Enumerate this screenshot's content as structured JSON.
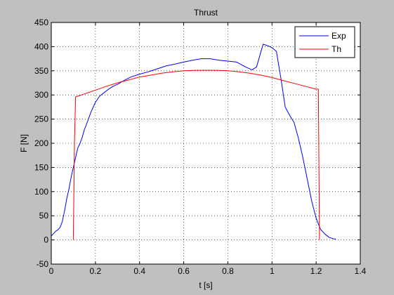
{
  "chart_data": {
    "type": "line",
    "title": "Thrust",
    "xlabel": "t [s]",
    "ylabel": "F [N]",
    "xlim": [
      0,
      1.4
    ],
    "ylim": [
      -50,
      450
    ],
    "xticks": [
      0,
      0.2,
      0.4,
      0.6,
      0.8,
      1,
      1.2,
      1.4
    ],
    "xtick_labels": [
      "0",
      "0.2",
      "0.4",
      "0.6",
      "0.8",
      "1",
      "1.2",
      "1.4"
    ],
    "yticks": [
      -50,
      0,
      50,
      100,
      150,
      200,
      250,
      300,
      350,
      400,
      450
    ],
    "ytick_labels": [
      "-50",
      "0",
      "50",
      "100",
      "150",
      "200",
      "250",
      "300",
      "350",
      "400",
      "450"
    ],
    "grid": true,
    "legend_position": "top-right",
    "colors": {
      "exp": "#0000ff",
      "th": "#ff0000",
      "background": "#c0c0c0",
      "axes": "#ffffff"
    },
    "series": [
      {
        "name": "Exp",
        "color": "#0000ff",
        "x": [
          0.0,
          0.01,
          0.02,
          0.03,
          0.04,
          0.05,
          0.06,
          0.07,
          0.08,
          0.09,
          0.1,
          0.11,
          0.12,
          0.13,
          0.14,
          0.15,
          0.16,
          0.17,
          0.18,
          0.2,
          0.22,
          0.24,
          0.26,
          0.28,
          0.3,
          0.33,
          0.36,
          0.4,
          0.44,
          0.48,
          0.52,
          0.56,
          0.6,
          0.64,
          0.68,
          0.72,
          0.76,
          0.8,
          0.84,
          0.88,
          0.91,
          0.93,
          0.95,
          0.96,
          0.98,
          1.0,
          1.02,
          1.04,
          1.06,
          1.08,
          1.1,
          1.12,
          1.14,
          1.16,
          1.18,
          1.2,
          1.22,
          1.24,
          1.26,
          1.28,
          1.29
        ],
        "y": [
          8,
          13,
          18,
          21,
          26,
          38,
          60,
          85,
          105,
          130,
          150,
          170,
          190,
          200,
          212,
          228,
          240,
          252,
          265,
          285,
          298,
          305,
          312,
          318,
          322,
          330,
          337,
          343,
          348,
          354,
          360,
          364,
          368,
          372,
          375,
          375,
          372,
          370,
          368,
          358,
          352,
          358,
          390,
          405,
          402,
          398,
          390,
          335,
          275,
          258,
          243,
          210,
          170,
          125,
          80,
          45,
          22,
          12,
          5,
          2,
          2
        ]
      },
      {
        "name": "Th",
        "color": "#ff0000",
        "x": [
          0.1,
          0.105,
          0.11,
          0.15,
          0.2,
          0.25,
          0.3,
          0.35,
          0.4,
          0.45,
          0.5,
          0.55,
          0.6,
          0.65,
          0.7,
          0.75,
          0.8,
          0.85,
          0.9,
          0.95,
          1.0,
          1.05,
          1.1,
          1.15,
          1.2,
          1.21,
          1.215
        ],
        "y": [
          0,
          200,
          296,
          302,
          310,
          318,
          325,
          331,
          337,
          341,
          345,
          348,
          350,
          351,
          351,
          351,
          350,
          348,
          345,
          341,
          336,
          330,
          324,
          318,
          312,
          312,
          0
        ]
      }
    ]
  }
}
